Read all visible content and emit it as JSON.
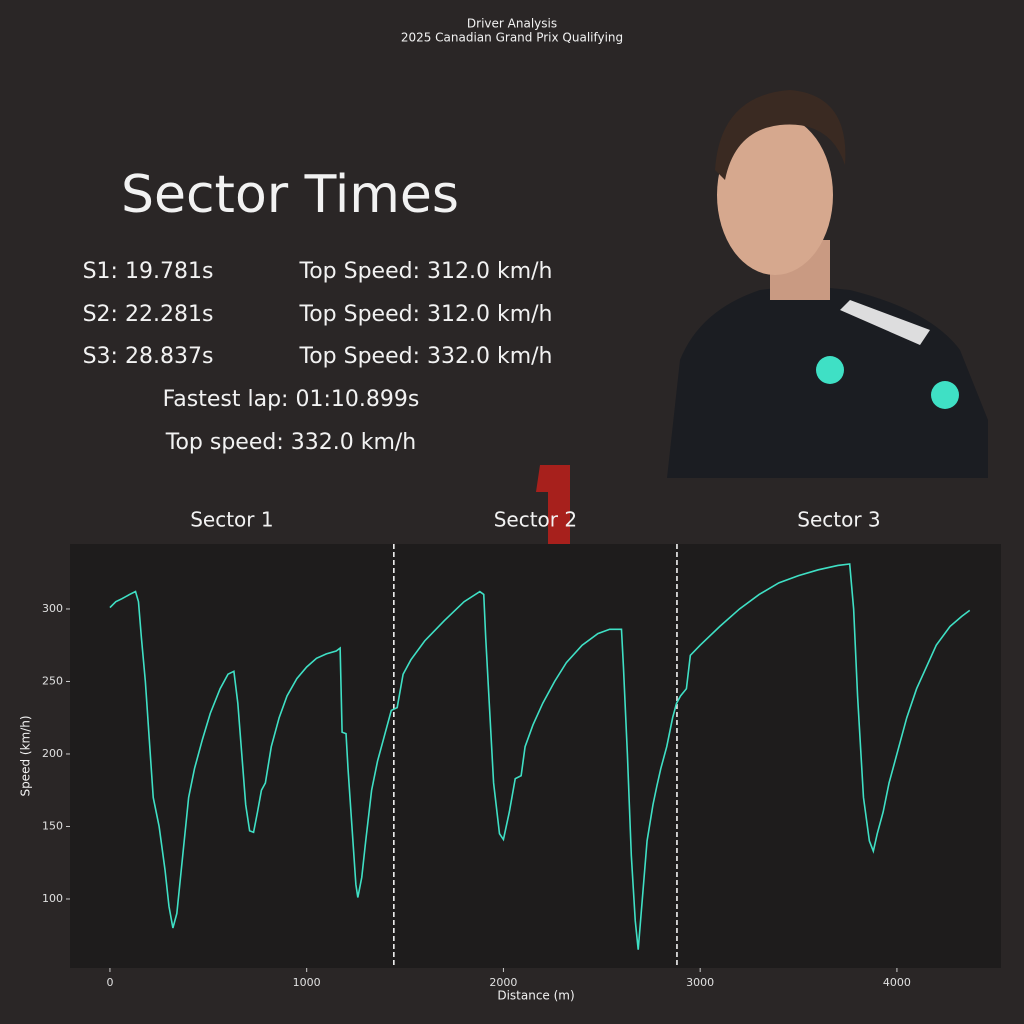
{
  "header": {
    "title": "Driver Analysis",
    "subtitle": "2025 Canadian Grand Prix Qualifying"
  },
  "sector_times": {
    "heading": "Sector Times",
    "rows": [
      {
        "time": "S1: 19.781s",
        "top_speed": "Top Speed: 312.0 km/h"
      },
      {
        "time": "S2: 22.281s",
        "top_speed": "Top Speed: 312.0 km/h"
      },
      {
        "time": "S3: 28.837s",
        "top_speed": "Top Speed: 332.0 km/h"
      }
    ],
    "fastest_lap": "Fastest lap: 01:10.899s",
    "top_speed": "Top speed: 332.0 km/h"
  },
  "chart_data": {
    "type": "line",
    "sector_labels": [
      "Sector 1",
      "Sector 2",
      "Sector 3"
    ],
    "sector_boundaries": [
      1443,
      2882
    ],
    "x_label": "Distance (m)",
    "y_label": "Speed (km/h)",
    "xlim": [
      -203,
      4529
    ],
    "ylim": [
      52.4,
      344.8
    ],
    "xticks": [
      0,
      1000,
      2000,
      3000,
      4000
    ],
    "yticks": [
      100,
      150,
      200,
      250,
      300
    ],
    "series": [
      {
        "color": "#3fe0c5",
        "x": [
          0,
          30,
          60,
          100,
          130,
          145,
          160,
          180,
          200,
          220,
          250,
          280,
          300,
          320,
          340,
          370,
          400,
          430,
          470,
          510,
          560,
          600,
          630,
          650,
          670,
          690,
          710,
          730,
          750,
          770,
          790,
          820,
          860,
          900,
          950,
          1000,
          1050,
          1100,
          1150,
          1170,
          1180,
          1200,
          1210,
          1230,
          1250,
          1260,
          1280,
          1300,
          1330,
          1360,
          1400,
          1430,
          1460,
          1490,
          1530,
          1600,
          1700,
          1800,
          1880,
          1900,
          1910,
          1930,
          1950,
          1980,
          2000,
          2030,
          2060,
          2090,
          2110,
          2150,
          2200,
          2260,
          2320,
          2400,
          2480,
          2540,
          2600,
          2610,
          2630,
          2650,
          2670,
          2685,
          2700,
          2730,
          2760,
          2780,
          2800,
          2830,
          2860,
          2880,
          2900,
          2930,
          2950,
          3000,
          3100,
          3200,
          3300,
          3400,
          3500,
          3600,
          3700,
          3760,
          3780,
          3800,
          3830,
          3860,
          3880,
          3900,
          3930,
          3960,
          4000,
          4050,
          4100,
          4150,
          4200,
          4270,
          4330,
          4370
        ],
        "values": [
          301,
          305,
          307,
          310,
          312,
          305,
          280,
          250,
          210,
          170,
          150,
          120,
          95,
          80,
          90,
          130,
          170,
          190,
          210,
          228,
          245,
          255,
          257,
          235,
          200,
          165,
          147,
          146,
          160,
          175,
          180,
          205,
          225,
          240,
          252,
          260,
          266,
          269,
          271,
          273,
          215,
          214,
          190,
          150,
          110,
          101,
          115,
          140,
          175,
          195,
          215,
          230,
          232,
          255,
          265,
          278,
          292,
          305,
          312,
          310,
          280,
          230,
          180,
          145,
          141,
          160,
          183,
          185,
          205,
          220,
          235,
          250,
          263,
          275,
          283,
          286,
          286,
          260,
          200,
          130,
          85,
          65,
          90,
          140,
          165,
          178,
          190,
          205,
          225,
          235,
          240,
          245,
          268,
          275,
          288,
          300,
          310,
          318,
          323,
          327,
          330,
          331,
          300,
          240,
          170,
          140,
          133,
          145,
          160,
          180,
          200,
          225,
          245,
          260,
          275,
          288,
          295,
          299
        ]
      }
    ]
  }
}
